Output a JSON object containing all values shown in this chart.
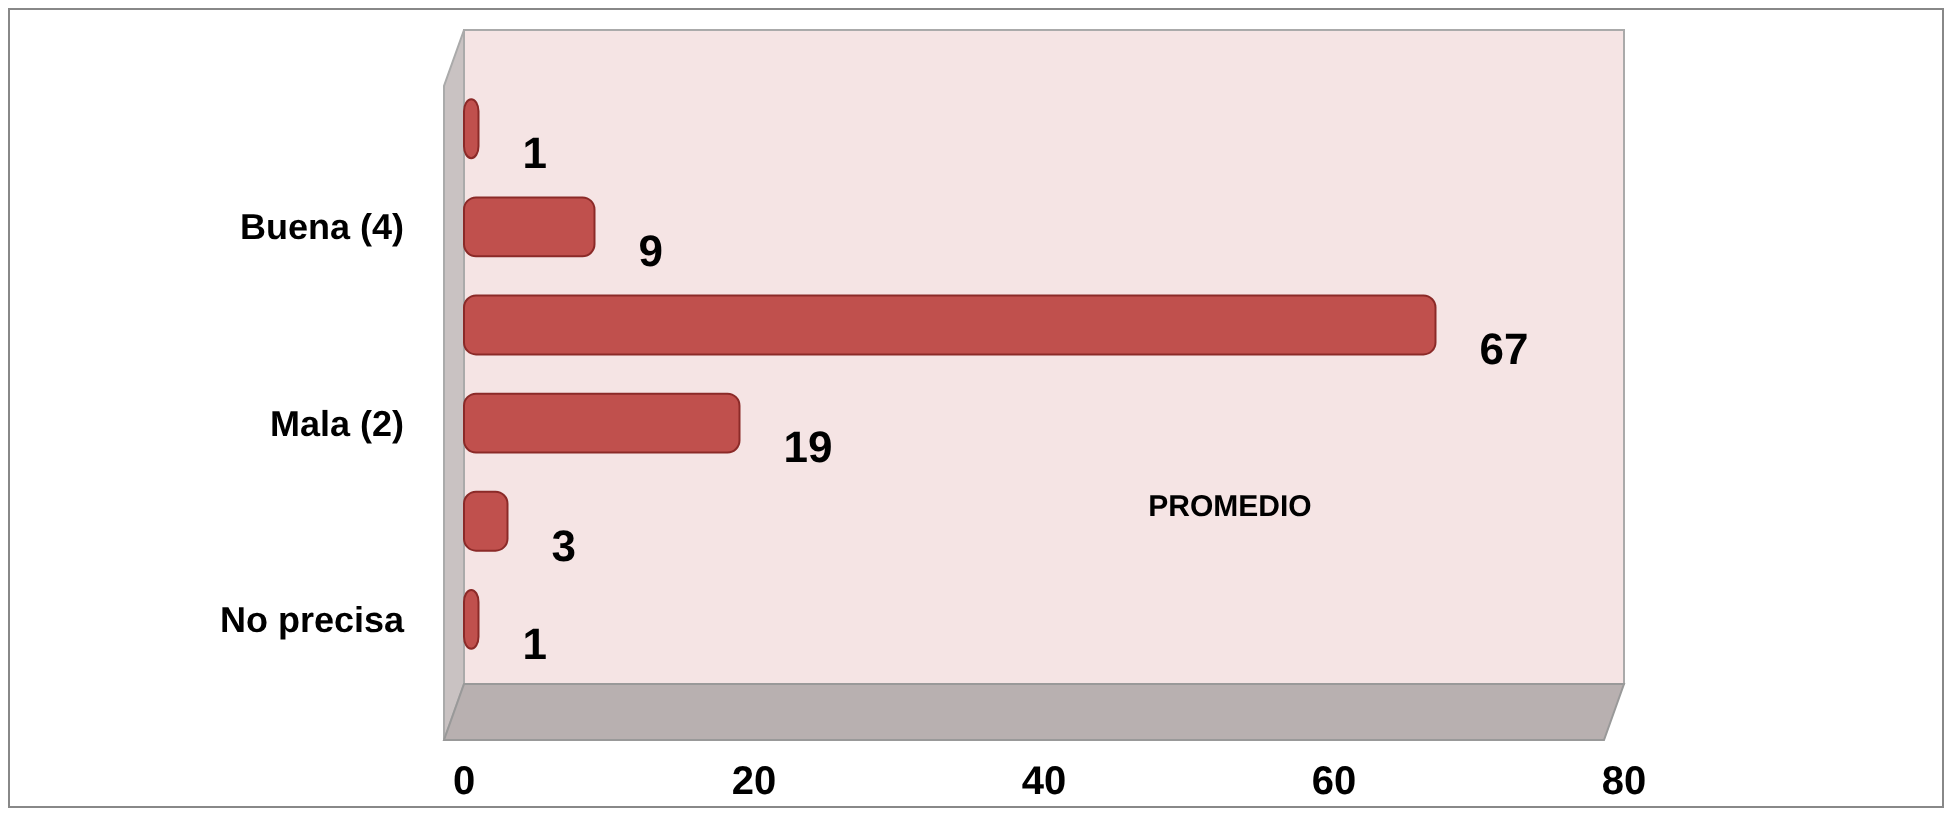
{
  "chart_data": {
    "type": "bar",
    "orientation": "horizontal",
    "categories": [
      null,
      "Buena (4)",
      null,
      "Mala (2)",
      null,
      "No precisa"
    ],
    "values": [
      1,
      9,
      67,
      19,
      3,
      1
    ],
    "color": "#c0504d",
    "xlim": [
      0,
      80
    ],
    "xticks": [
      0,
      20,
      40,
      60,
      80
    ],
    "data_labels": true,
    "annotations": [
      "PROMEDIO"
    ]
  }
}
